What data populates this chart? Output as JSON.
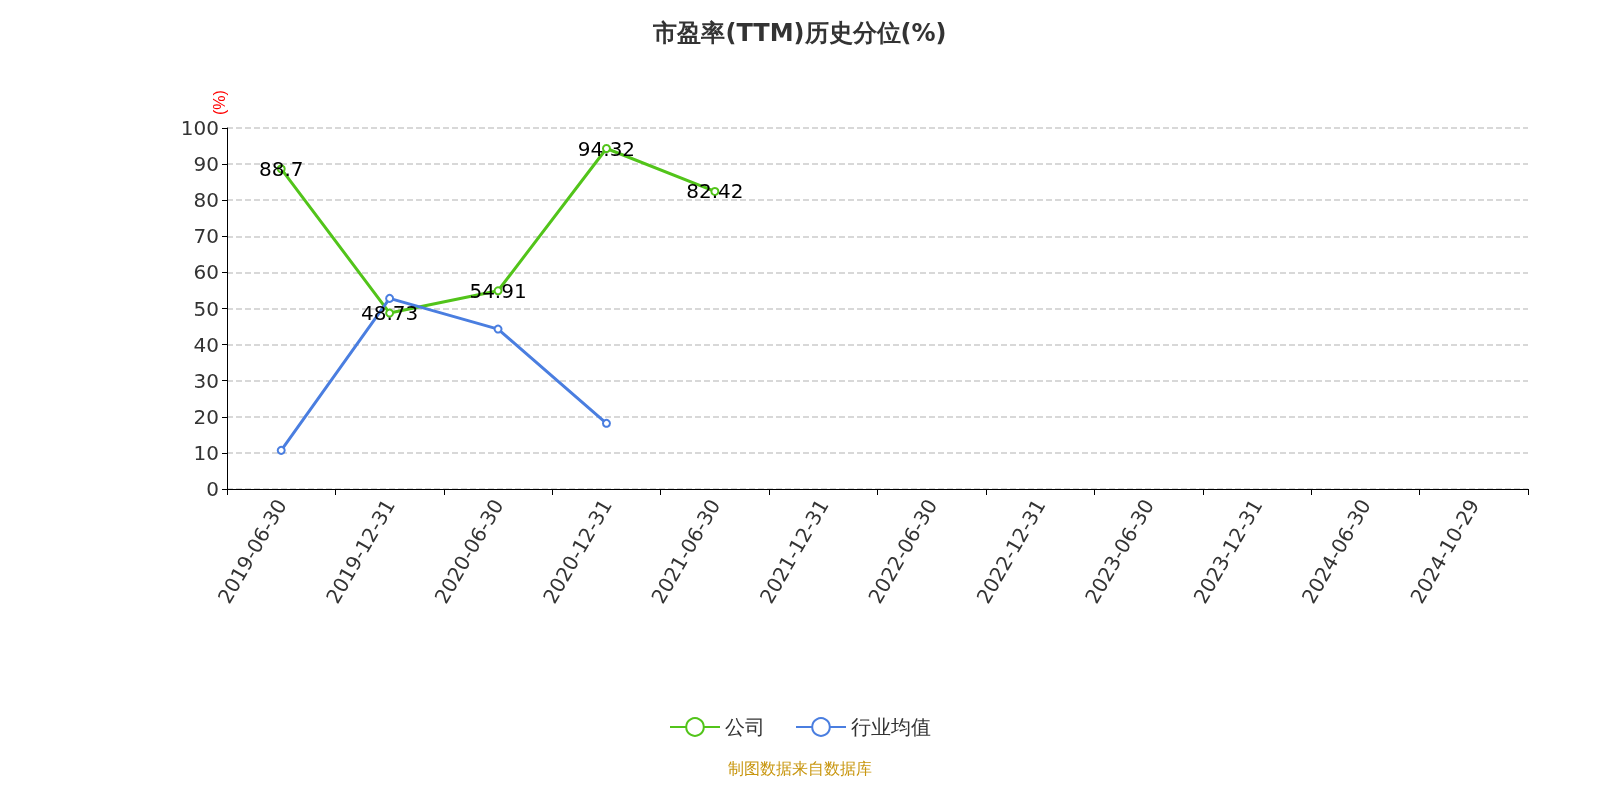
{
  "chart_data": {
    "type": "line",
    "title": "市盈率(TTM)历史分位(%)",
    "ylabel": "(%)",
    "annotations": [
      "制图数据来自数据库"
    ],
    "categories": [
      "2019-06-30",
      "2019-12-31",
      "2020-06-30",
      "2020-12-31",
      "2021-06-30",
      "2021-12-31",
      "2022-06-30",
      "2022-12-31",
      "2023-06-30",
      "2023-12-31",
      "2024-06-30",
      "2024-10-29"
    ],
    "series": [
      {
        "name": "公司",
        "color": "#52c41a",
        "values": [
          88.7,
          48.73,
          54.91,
          94.32,
          82.42,
          null,
          null,
          null,
          null,
          null,
          null,
          null
        ],
        "data_labels": true
      },
      {
        "name": "行业均值",
        "color": "#4a7ee0",
        "values": [
          10.7,
          52.8,
          44.3,
          18.2,
          null,
          null,
          null,
          null,
          null,
          null,
          null,
          null
        ]
      }
    ],
    "ylim": [
      0,
      100
    ],
    "yticks": [
      0,
      10,
      20,
      30,
      40,
      50,
      60,
      70,
      80,
      90,
      100
    ],
    "grid": "y",
    "legend": "bottom",
    "marker": "circle",
    "line_style": "solid"
  }
}
